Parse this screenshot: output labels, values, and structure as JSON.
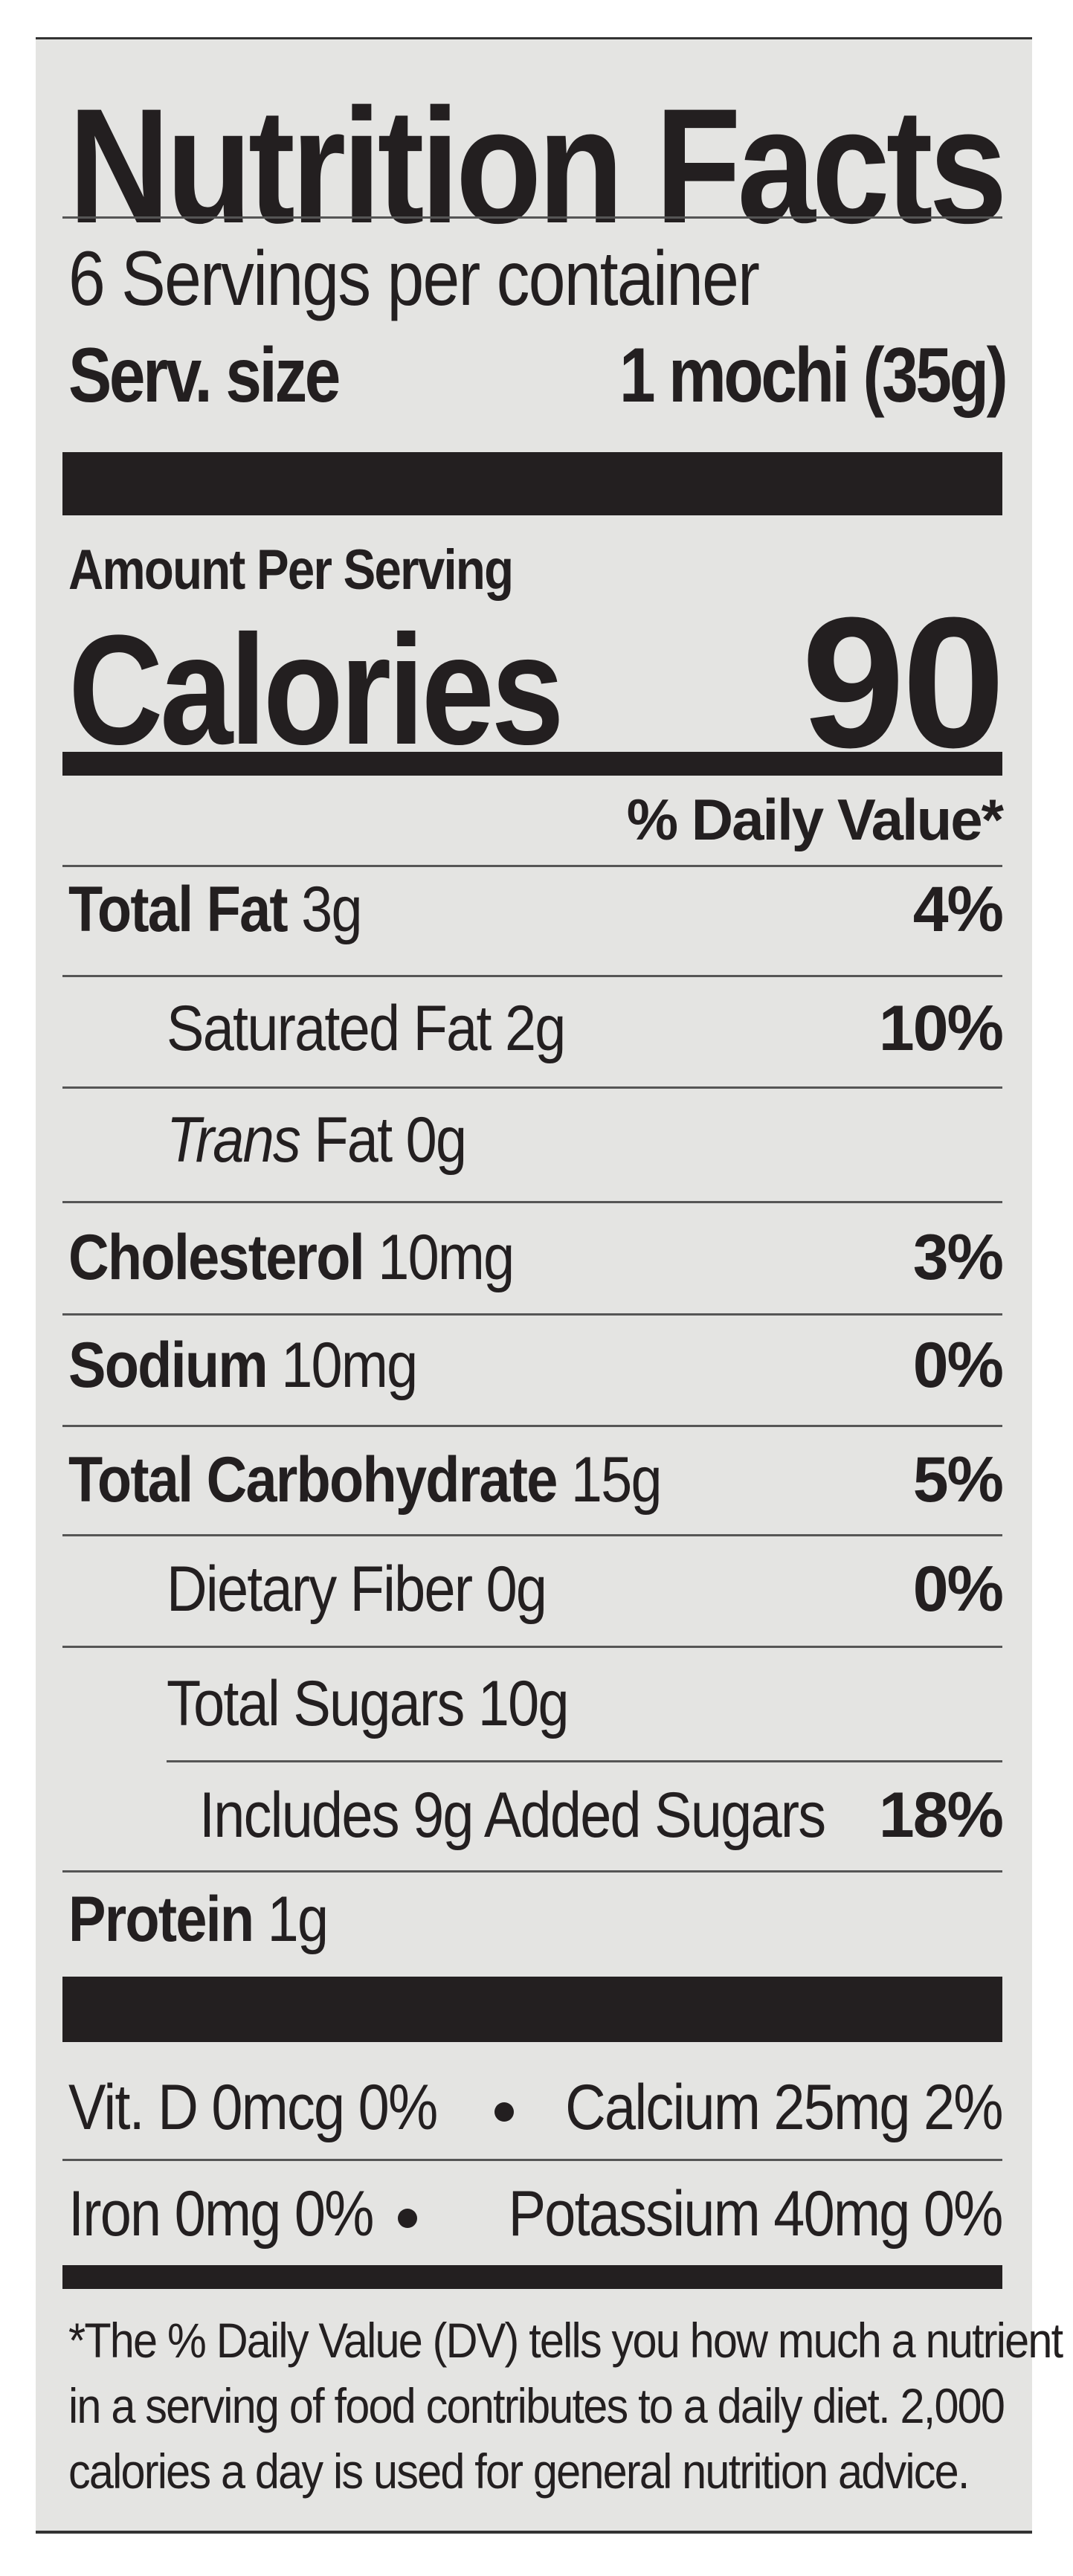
{
  "title": "Nutrition Facts",
  "servings_per_container": "6 Servings per container",
  "serving_size_label": "Serv. size",
  "serving_size_value": "1 mochi (35g)",
  "amount_per_serving": "Amount Per Serving",
  "calories_label": "Calories",
  "calories_value": "90",
  "daily_value_header": "% Daily Value*",
  "nutrients": [
    {
      "name": "Total Fat",
      "amount": "3g",
      "dv": "4%"
    },
    {
      "name": "Saturated Fat",
      "amount": "2g",
      "dv": "10%"
    },
    {
      "name": "Trans",
      "name_suffix": "Fat",
      "amount": "0g",
      "dv": ""
    },
    {
      "name": "Cholesterol",
      "amount": "10mg",
      "dv": "3%"
    },
    {
      "name": "Sodium",
      "amount": "10mg",
      "dv": "0%"
    },
    {
      "name": "Total Carbohydrate",
      "amount": "15g",
      "dv": "5%"
    },
    {
      "name": "Dietary Fiber",
      "amount": "0g",
      "dv": "0%"
    },
    {
      "name": "Total Sugars",
      "amount": "10g",
      "dv": ""
    },
    {
      "name": "Includes 9g Added Sugars",
      "amount": "",
      "dv": "18%"
    },
    {
      "name": "Protein",
      "amount": "1g",
      "dv": ""
    }
  ],
  "vitamins": [
    {
      "left": "Vit. D 0mcg 0%",
      "right": "Calcium 25mg 2%"
    },
    {
      "left": "Iron 0mg 0%",
      "right": "Potassium 40mg 0%"
    }
  ],
  "footnote": [
    "*The % Daily Value (DV) tells you how much a nutrient",
    "in a serving of food contributes to a daily diet. 2,000",
    "calories a day is used for general nutrition advice."
  ],
  "colors": {
    "ink": "#231f20",
    "panel": "#e4e4e2"
  }
}
